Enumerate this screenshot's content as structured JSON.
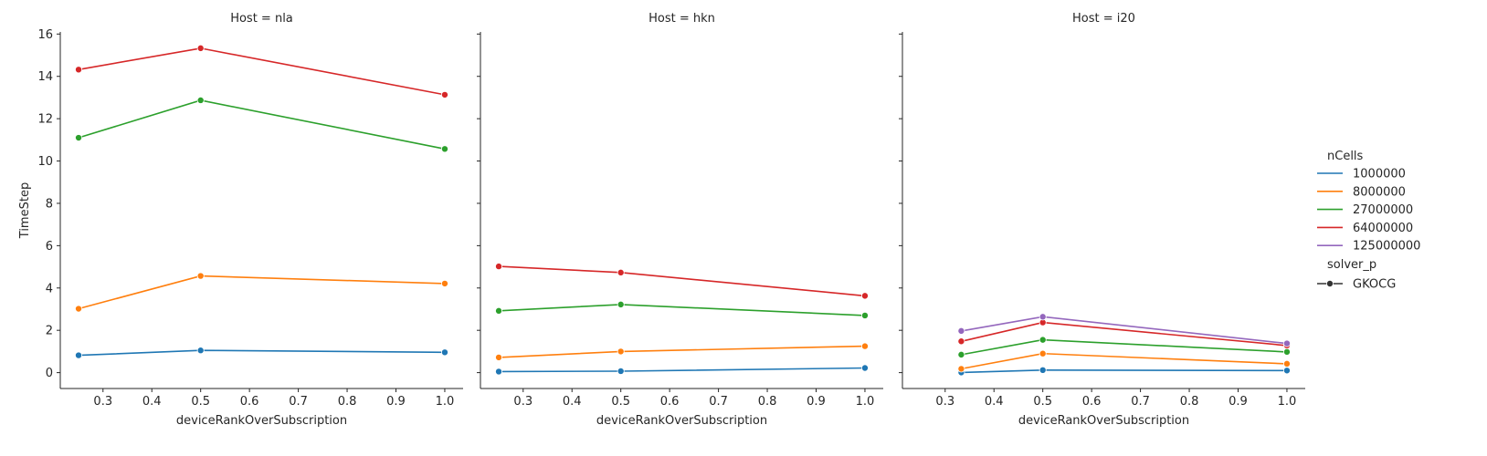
{
  "chart_data": {
    "type": "line",
    "ylabel": "TimeStep",
    "xlabel": "deviceRankOverSubscription",
    "ylim": [
      -0.75,
      16.1
    ],
    "yticks": [
      0,
      2,
      4,
      6,
      8,
      10,
      12,
      14,
      16
    ],
    "legend": {
      "placement": "right",
      "hue_title": "nCells",
      "style_title": "solver_p",
      "style_entries": [
        {
          "label": "GKOCG",
          "marker": "circle"
        }
      ]
    },
    "series_styles": [
      {
        "name": "1000000",
        "color": "#1f77b4"
      },
      {
        "name": "8000000",
        "color": "#ff7f0e"
      },
      {
        "name": "27000000",
        "color": "#2ca02c"
      },
      {
        "name": "64000000",
        "color": "#d62728"
      },
      {
        "name": "125000000",
        "color": "#9467bd"
      }
    ],
    "panels": [
      {
        "title": "Host = nla",
        "xlim": [
          0.2125,
          1.0375
        ],
        "xticks": [
          0.3,
          0.4,
          0.5,
          0.6,
          0.7,
          0.8,
          0.9,
          1.0
        ],
        "series": [
          {
            "name": "1000000",
            "x": [
              0.25,
              0.5,
              1.0
            ],
            "y": [
              0.82,
              1.05,
              0.96
            ]
          },
          {
            "name": "8000000",
            "x": [
              0.25,
              0.5,
              1.0
            ],
            "y": [
              3.02,
              4.57,
              4.21
            ]
          },
          {
            "name": "27000000",
            "x": [
              0.25,
              0.5,
              1.0
            ],
            "y": [
              11.1,
              12.87,
              10.57
            ]
          },
          {
            "name": "64000000",
            "x": [
              0.25,
              0.5,
              1.0
            ],
            "y": [
              14.32,
              15.33,
              13.13
            ]
          }
        ]
      },
      {
        "title": "Host = hkn",
        "xlim": [
          0.2125,
          1.0375
        ],
        "xticks": [
          0.3,
          0.4,
          0.5,
          0.6,
          0.7,
          0.8,
          0.9,
          1.0
        ],
        "series": [
          {
            "name": "1000000",
            "x": [
              0.25,
              0.5,
              1.0
            ],
            "y": [
              0.05,
              0.07,
              0.22
            ]
          },
          {
            "name": "8000000",
            "x": [
              0.25,
              0.5,
              1.0
            ],
            "y": [
              0.72,
              1.0,
              1.25
            ]
          },
          {
            "name": "27000000",
            "x": [
              0.25,
              0.5,
              1.0
            ],
            "y": [
              2.92,
              3.22,
              2.7
            ]
          },
          {
            "name": "64000000",
            "x": [
              0.25,
              0.5,
              1.0
            ],
            "y": [
              5.02,
              4.73,
              3.63
            ]
          }
        ]
      },
      {
        "title": "Host = i20",
        "xlim": [
          0.2125,
          1.0375
        ],
        "xticks": [
          0.3,
          0.4,
          0.5,
          0.6,
          0.7,
          0.8,
          0.9,
          1.0
        ],
        "series": [
          {
            "name": "1000000",
            "x": [
              0.333,
              0.5,
              1.0
            ],
            "y": [
              0.01,
              0.12,
              0.1
            ]
          },
          {
            "name": "8000000",
            "x": [
              0.333,
              0.5,
              1.0
            ],
            "y": [
              0.18,
              0.9,
              0.42
            ]
          },
          {
            "name": "27000000",
            "x": [
              0.333,
              0.5,
              1.0
            ],
            "y": [
              0.85,
              1.55,
              0.98
            ]
          },
          {
            "name": "64000000",
            "x": [
              0.333,
              0.5,
              1.0
            ],
            "y": [
              1.48,
              2.37,
              1.28
            ]
          },
          {
            "name": "125000000",
            "x": [
              0.333,
              0.5,
              1.0
            ],
            "y": [
              1.97,
              2.64,
              1.38
            ]
          }
        ]
      }
    ]
  }
}
